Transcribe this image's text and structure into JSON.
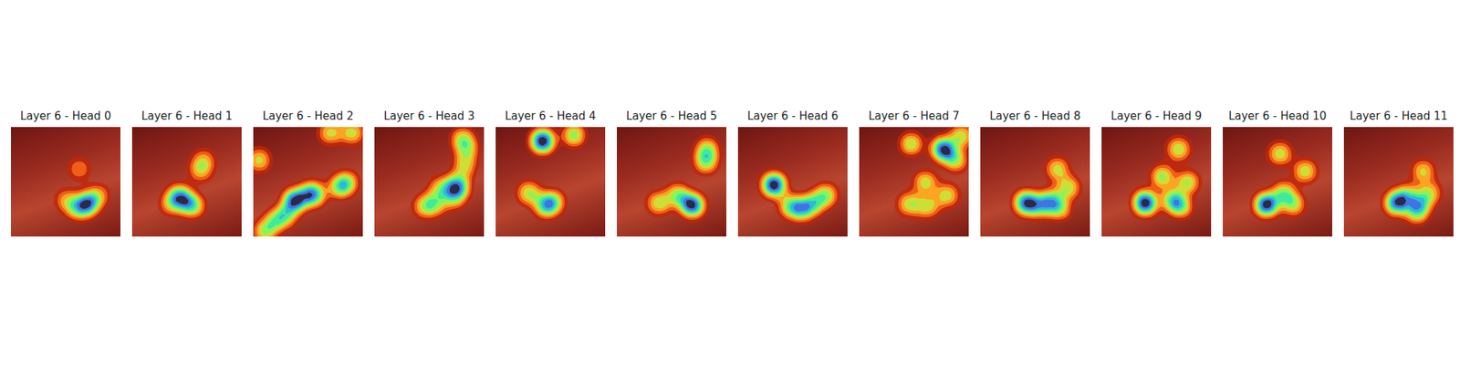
{
  "chart_data": [
    {
      "type": "density",
      "title": "Layer 6 - Head 0",
      "x": [
        0.7,
        0.71,
        0.66,
        0.58,
        0.5,
        0.62,
        0.8
      ],
      "y": [
        0.68,
        0.7,
        0.73,
        0.74,
        0.66,
        0.38,
        0.62
      ],
      "xlim": [
        0,
        1
      ],
      "ylim": [
        0,
        1
      ],
      "tick_labels": false
    },
    {
      "type": "density",
      "title": "Layer 6 - Head 1",
      "x": [
        0.42,
        0.44,
        0.52,
        0.56,
        0.35,
        0.62,
        0.65
      ],
      "y": [
        0.62,
        0.64,
        0.7,
        0.72,
        0.7,
        0.4,
        0.3
      ],
      "xlim": [
        0,
        1
      ],
      "ylim": [
        0,
        1
      ],
      "tick_labels": false
    },
    {
      "type": "density",
      "title": "Layer 6 - Head 2",
      "x": [
        0.37,
        0.38,
        0.52,
        0.55,
        0.2,
        0.1,
        0.3,
        0.9,
        0.7,
        0.05,
        0.78,
        0.85
      ],
      "y": [
        0.66,
        0.67,
        0.6,
        0.62,
        0.85,
        0.95,
        0.8,
        0.05,
        0.05,
        0.3,
        0.55,
        0.5
      ],
      "xlim": [
        0,
        1
      ],
      "ylim": [
        0,
        1
      ],
      "tick_labels": false
    },
    {
      "type": "density",
      "title": "Layer 6 - Head 3",
      "x": [
        0.75,
        0.76,
        0.72,
        0.55,
        0.45,
        0.82,
        0.84,
        0.8,
        0.6
      ],
      "y": [
        0.52,
        0.55,
        0.65,
        0.7,
        0.72,
        0.35,
        0.2,
        0.1,
        0.55
      ],
      "xlim": [
        0,
        1
      ],
      "ylim": [
        0,
        1
      ],
      "tick_labels": false
    },
    {
      "type": "density",
      "title": "Layer 6 - Head 4",
      "x": [
        0.42,
        0.43,
        0.71,
        0.52,
        0.45,
        0.3
      ],
      "y": [
        0.13,
        0.12,
        0.07,
        0.68,
        0.72,
        0.6
      ],
      "xlim": [
        0,
        1
      ],
      "ylim": [
        0,
        1
      ],
      "tick_labels": false
    },
    {
      "type": "density",
      "title": "Layer 6 - Head 5",
      "x": [
        0.68,
        0.69,
        0.38,
        0.81,
        0.82,
        0.55
      ],
      "y": [
        0.7,
        0.72,
        0.69,
        0.32,
        0.2,
        0.62
      ],
      "xlim": [
        0,
        1
      ],
      "ylim": [
        0,
        1
      ],
      "tick_labels": false
    },
    {
      "type": "density",
      "title": "Layer 6 - Head 6",
      "x": [
        0.32,
        0.33,
        0.47,
        0.68,
        0.58,
        0.8
      ],
      "y": [
        0.52,
        0.53,
        0.72,
        0.7,
        0.75,
        0.62
      ],
      "xlim": [
        0,
        1
      ],
      "ylim": [
        0,
        1
      ],
      "tick_labels": false
    },
    {
      "type": "density",
      "title": "Layer 6 - Head 7",
      "x": [
        0.76,
        0.77,
        0.47,
        0.93,
        0.88,
        0.6,
        0.45,
        0.62,
        0.8
      ],
      "y": [
        0.19,
        0.21,
        0.15,
        0.08,
        0.3,
        0.5,
        0.7,
        0.72,
        0.62
      ],
      "xlim": [
        0,
        1
      ],
      "ylim": [
        0,
        1
      ],
      "tick_labels": false
    },
    {
      "type": "density",
      "title": "Layer 6 - Head 8",
      "x": [
        0.41,
        0.42,
        0.64,
        0.72,
        0.55,
        0.8,
        0.7
      ],
      "y": [
        0.68,
        0.7,
        0.66,
        0.74,
        0.72,
        0.55,
        0.38
      ],
      "xlim": [
        0,
        1
      ],
      "ylim": [
        0,
        1
      ],
      "tick_labels": false
    },
    {
      "type": "density",
      "title": "Layer 6 - Head 9",
      "x": [
        0.39,
        0.4,
        0.64,
        0.72,
        0.78,
        0.7,
        0.55
      ],
      "y": [
        0.68,
        0.7,
        0.66,
        0.72,
        0.5,
        0.2,
        0.45
      ],
      "xlim": [
        0,
        1
      ],
      "ylim": [
        0,
        1
      ],
      "tick_labels": false
    },
    {
      "type": "density",
      "title": "Layer 6 - Head 10",
      "x": [
        0.39,
        0.4,
        0.64,
        0.52,
        0.75,
        0.55
      ],
      "y": [
        0.7,
        0.71,
        0.7,
        0.24,
        0.4,
        0.6
      ],
      "xlim": [
        0,
        1
      ],
      "ylim": [
        0,
        1
      ],
      "tick_labels": false
    },
    {
      "type": "density",
      "title": "Layer 6 - Head 11",
      "x": [
        0.47,
        0.48,
        0.69,
        0.66,
        0.58,
        0.72,
        0.78
      ],
      "y": [
        0.68,
        0.7,
        0.7,
        0.78,
        0.62,
        0.4,
        0.6
      ],
      "xlim": [
        0,
        1
      ],
      "ylim": [
        0,
        1
      ],
      "tick_labels": false
    }
  ]
}
